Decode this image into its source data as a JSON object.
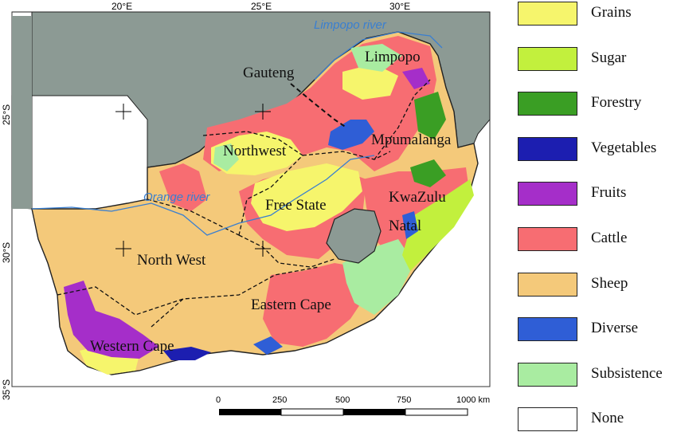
{
  "map": {
    "grid": {
      "longitudes": [
        "20°E",
        "25°E",
        "30°E"
      ],
      "latitudes": [
        "25°S",
        "30°S",
        "35°S"
      ]
    },
    "rivers": [
      {
        "name": "Limpopo river"
      },
      {
        "name": "Orange river"
      }
    ],
    "regions": [
      {
        "id": "limpopo",
        "name": "Limpopo"
      },
      {
        "id": "gauteng",
        "name": "Gauteng"
      },
      {
        "id": "mpumalanga",
        "name": "Mpumalanga"
      },
      {
        "id": "northwest",
        "name": "Northwest"
      },
      {
        "id": "free_state",
        "name": "Free State"
      },
      {
        "id": "kwazulu",
        "name": "KwaZulu"
      },
      {
        "id": "natal",
        "name": "Natal"
      },
      {
        "id": "north_west",
        "name": "North West"
      },
      {
        "id": "eastern_cape",
        "name": "Eastern Cape"
      },
      {
        "id": "western_cape",
        "name": "Western Cape"
      }
    ],
    "scale_bar": {
      "ticks": [
        "0",
        "250",
        "500",
        "750",
        "1000 km"
      ]
    },
    "colors": {
      "ocean": "#ffffff",
      "neighbors": "#8c9a94",
      "lesotho": "#8c9a94",
      "borders": "#111111",
      "rivers": "#3a7fd0"
    }
  },
  "legend": {
    "items": [
      {
        "label": "Grains",
        "color": "#f6f56c"
      },
      {
        "label": "Sugar",
        "color": "#c2f03d"
      },
      {
        "label": "Forestry",
        "color": "#3a9e24"
      },
      {
        "label": "Vegetables",
        "color": "#1c1eb0"
      },
      {
        "label": "Fruits",
        "color": "#a52ec9"
      },
      {
        "label": "Cattle",
        "color": "#f76d72"
      },
      {
        "label": "Sheep",
        "color": "#f4c97a"
      },
      {
        "label": "Diverse",
        "color": "#2f5ed6"
      },
      {
        "label": "Subsistence",
        "color": "#a9eca1"
      },
      {
        "label": "None",
        "color": "#ffffff"
      }
    ]
  }
}
